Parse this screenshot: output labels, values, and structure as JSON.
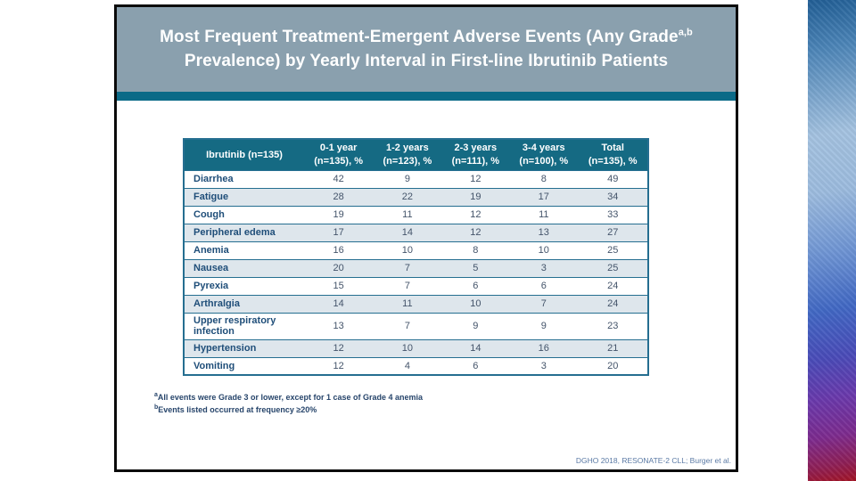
{
  "slide": {
    "title": {
      "line1": "Most Frequent Treatment-Emergent Adverse Events (Any Grade",
      "superscript": "a,b",
      "line2": "Prevalence) by Yearly Interval in First-line Ibrutinib Patients"
    }
  },
  "table": {
    "columns": [
      {
        "line1": "Ibrutinib (n=135)",
        "line2": ""
      },
      {
        "line1": "0-1 year",
        "line2": "(n=135), %"
      },
      {
        "line1": "1-2 years",
        "line2": "(n=123), %"
      },
      {
        "line1": "2-3 years",
        "line2": "(n=111), %"
      },
      {
        "line1": "3-4 years",
        "line2": "(n=100), %"
      },
      {
        "line1": "Total",
        "line2": "(n=135), %"
      }
    ],
    "rows": [
      {
        "label": "Diarrhea",
        "values": [
          42,
          9,
          12,
          8,
          49
        ]
      },
      {
        "label": "Fatigue",
        "values": [
          28,
          22,
          19,
          17,
          34
        ]
      },
      {
        "label": "Cough",
        "values": [
          19,
          11,
          12,
          11,
          33
        ]
      },
      {
        "label": "Peripheral edema",
        "values": [
          17,
          14,
          12,
          13,
          27
        ]
      },
      {
        "label": "Anemia",
        "values": [
          16,
          10,
          8,
          10,
          25
        ]
      },
      {
        "label": "Nausea",
        "values": [
          20,
          7,
          5,
          3,
          25
        ]
      },
      {
        "label": "Pyrexia",
        "values": [
          15,
          7,
          6,
          6,
          24
        ]
      },
      {
        "label": "Arthralgia",
        "values": [
          14,
          11,
          10,
          7,
          24
        ]
      },
      {
        "label": "Upper respiratory infection",
        "values": [
          13,
          7,
          9,
          9,
          23
        ]
      },
      {
        "label": "Hypertension",
        "values": [
          12,
          10,
          14,
          16,
          21
        ]
      },
      {
        "label": "Vomiting",
        "values": [
          12,
          4,
          6,
          3,
          20
        ]
      }
    ]
  },
  "footnotes": [
    {
      "sup": "a",
      "text": "All events were Grade 3 or lower, except for 1 case of Grade 4 anemia"
    },
    {
      "sup": "b",
      "text": "Events listed occurred at frequency ≥20%"
    }
  ],
  "citation": "DGHO 2018, RESONATE-2 CLL; Burger et al.",
  "colors": {
    "title_band_bg": "#8AA0AE",
    "accent_bar": "#0B6A87",
    "table_header_bg": "#156A83",
    "table_border": "#256E90",
    "row_alt_bg": "#DEE6EC",
    "label_color": "#1F4E79",
    "value_color": "#44546A",
    "footnote_color": "#27456B",
    "citation_color": "#5B7AA5",
    "grad_top": "#215E95",
    "grad_light": "#A4C2E0",
    "grad_royal": "#4168C4",
    "grad_purple": "#6939AC",
    "grad_red": "#A21425"
  }
}
